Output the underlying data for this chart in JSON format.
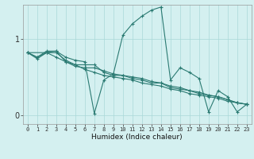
{
  "xlabel": "Humidex (Indice chaleur)",
  "background_color": "#d4f0f0",
  "grid_color": "#aad8d8",
  "line_color": "#2a7a72",
  "xlim": [
    -0.5,
    23.5
  ],
  "ylim": [
    -0.12,
    1.45
  ],
  "yticks": [
    0,
    1
  ],
  "xticks": [
    0,
    1,
    2,
    3,
    4,
    5,
    6,
    7,
    8,
    9,
    10,
    11,
    12,
    13,
    14,
    15,
    16,
    17,
    18,
    19,
    20,
    21,
    22,
    23
  ],
  "lines": [
    {
      "x": [
        0,
        1,
        2,
        3,
        4,
        5,
        6,
        7,
        8,
        9,
        10,
        11,
        12,
        13,
        14,
        15,
        16,
        17,
        18,
        19,
        20,
        21,
        22,
        23
      ],
      "y": [
        0.82,
        0.76,
        0.82,
        0.84,
        0.76,
        0.72,
        0.7,
        0.02,
        0.46,
        0.54,
        1.05,
        1.2,
        1.3,
        1.38,
        1.42,
        0.46,
        0.62,
        0.56,
        0.48,
        0.04,
        0.32,
        0.24,
        0.04,
        0.14
      ]
    },
    {
      "x": [
        0,
        1,
        2,
        3,
        4,
        5,
        6,
        7,
        8,
        9,
        10,
        11,
        12,
        13,
        14,
        15,
        16,
        17,
        18,
        19,
        20,
        21,
        22,
        23
      ],
      "y": [
        0.82,
        0.76,
        0.84,
        0.84,
        0.7,
        0.66,
        0.66,
        0.66,
        0.56,
        0.52,
        0.52,
        0.48,
        0.46,
        0.42,
        0.42,
        0.38,
        0.36,
        0.32,
        0.3,
        0.26,
        0.24,
        0.2,
        0.16,
        0.14
      ]
    },
    {
      "x": [
        0,
        1,
        2,
        3,
        4,
        5,
        6,
        7,
        8,
        9,
        10,
        11,
        12,
        13,
        14,
        15,
        16,
        17,
        18,
        19,
        20,
        21,
        22,
        23
      ],
      "y": [
        0.82,
        0.74,
        0.82,
        0.76,
        0.7,
        0.64,
        0.62,
        0.62,
        0.58,
        0.54,
        0.52,
        0.5,
        0.48,
        0.44,
        0.42,
        0.36,
        0.34,
        0.32,
        0.28,
        0.26,
        0.24,
        0.2,
        0.16,
        0.14
      ]
    },
    {
      "x": [
        0,
        2,
        3,
        4,
        5,
        6,
        7,
        8,
        9,
        10,
        11,
        12,
        13,
        14,
        15,
        16,
        17,
        18,
        19,
        20,
        21,
        22,
        23
      ],
      "y": [
        0.82,
        0.82,
        0.82,
        0.72,
        0.66,
        0.6,
        0.56,
        0.52,
        0.5,
        0.48,
        0.46,
        0.42,
        0.4,
        0.38,
        0.34,
        0.32,
        0.28,
        0.26,
        0.24,
        0.22,
        0.18,
        0.16,
        0.14
      ]
    }
  ]
}
